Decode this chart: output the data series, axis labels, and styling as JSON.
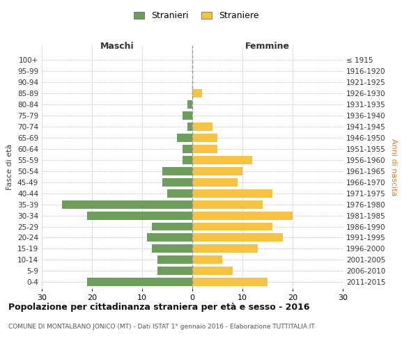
{
  "age_groups": [
    "0-4",
    "5-9",
    "10-14",
    "15-19",
    "20-24",
    "25-29",
    "30-34",
    "35-39",
    "40-44",
    "45-49",
    "50-54",
    "55-59",
    "60-64",
    "65-69",
    "70-74",
    "75-79",
    "80-84",
    "85-89",
    "90-94",
    "95-99",
    "100+"
  ],
  "birth_years": [
    "2011-2015",
    "2006-2010",
    "2001-2005",
    "1996-2000",
    "1991-1995",
    "1986-1990",
    "1981-1985",
    "1976-1980",
    "1971-1975",
    "1966-1970",
    "1961-1965",
    "1956-1960",
    "1951-1955",
    "1946-1950",
    "1941-1945",
    "1936-1940",
    "1931-1935",
    "1926-1930",
    "1921-1925",
    "1916-1920",
    "≤ 1915"
  ],
  "males": [
    21,
    7,
    7,
    8,
    9,
    8,
    21,
    26,
    5,
    6,
    6,
    2,
    2,
    3,
    1,
    2,
    1,
    0,
    0,
    0,
    0
  ],
  "females": [
    15,
    8,
    6,
    13,
    18,
    16,
    20,
    14,
    16,
    9,
    10,
    12,
    5,
    5,
    4,
    0,
    0,
    2,
    0,
    0,
    0
  ],
  "male_color": "#6a9e5a",
  "female_color": "#f5c242",
  "grid_color": "#cccccc",
  "title": "Popolazione per cittadinanza straniera per età e sesso - 2016",
  "subtitle": "COMUNE DI MONTALBANO JONICO (MT) - Dati ISTAT 1° gennaio 2016 - Elaborazione TUTTITALIA.IT",
  "legend_male": "Stranieri",
  "legend_female": "Straniere",
  "xlabel_left": "Maschi",
  "xlabel_right": "Femmine",
  "ylabel_left": "Fasce di età",
  "ylabel_right": "Anni di nascita",
  "xlim": 30,
  "title_fontsize": 9,
  "subtitle_fontsize": 6.5,
  "bar_height": 0.75
}
